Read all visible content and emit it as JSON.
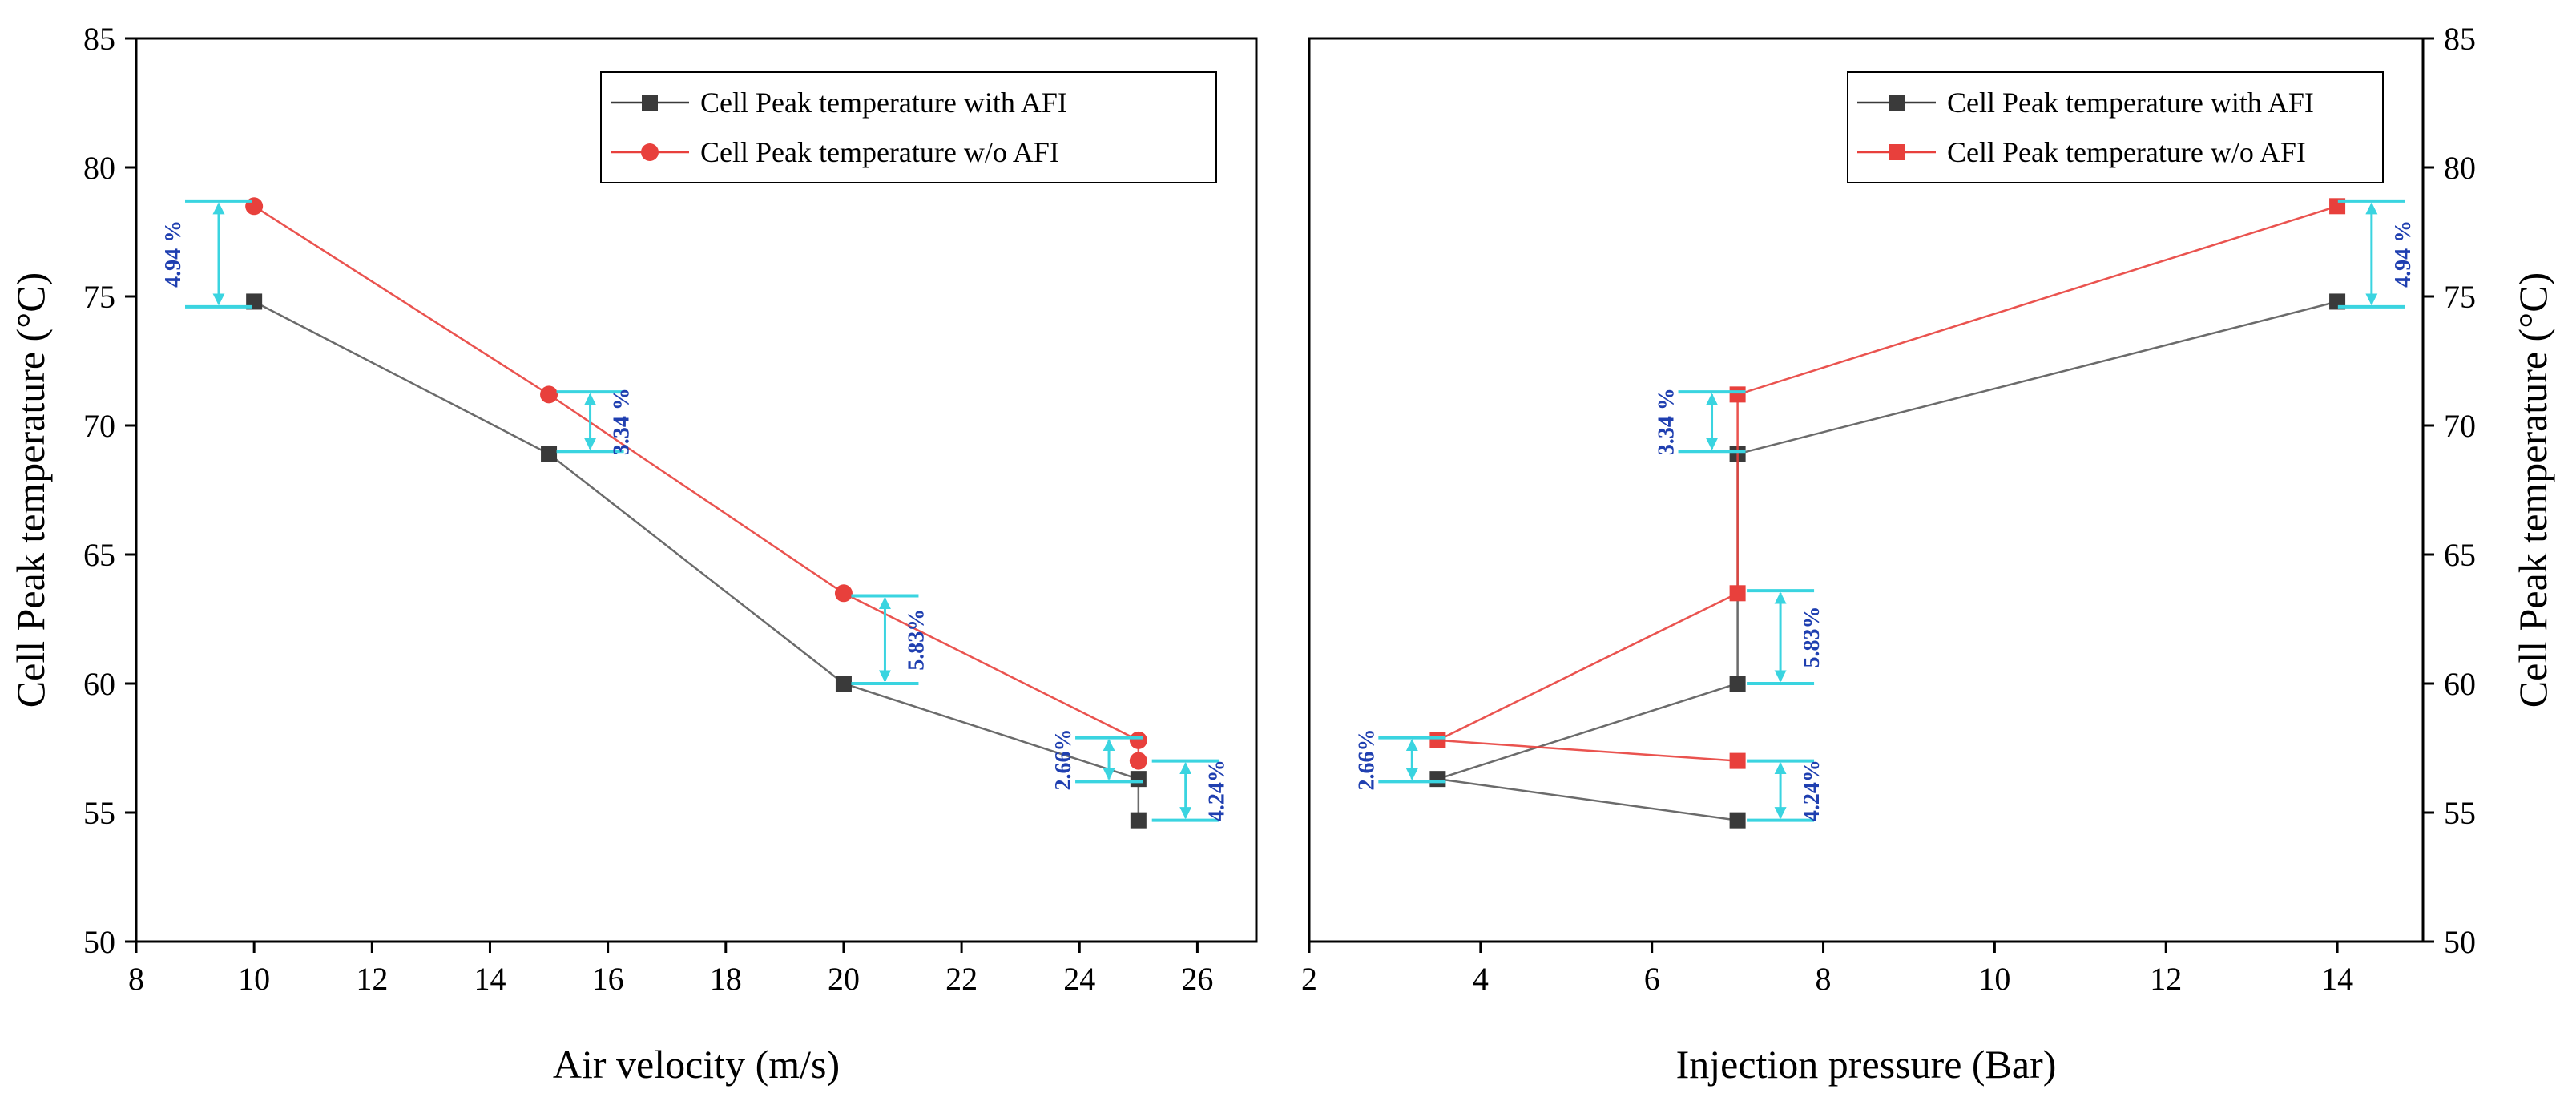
{
  "colors": {
    "with_afi": "#3a3a3a",
    "without_afi": "#e8403c",
    "annotation_line": "#3ad4e0",
    "annotation_text": "#1f3fb0"
  },
  "chart_data": [
    {
      "type": "line",
      "xlabel": "Air velocity (m/s)",
      "ylabel": "Cell Peak temperature (°C)",
      "xlim": [
        8,
        27
      ],
      "ylim": [
        50,
        85
      ],
      "xticks": [
        8,
        10,
        12,
        14,
        16,
        18,
        20,
        22,
        24,
        26
      ],
      "yticks": [
        50,
        55,
        60,
        65,
        70,
        75,
        80,
        85
      ],
      "y_axis_side": "left",
      "legend_position": "top-right",
      "series": [
        {
          "name": "Cell Peak temperature with AFI",
          "marker": "square",
          "color": "#3a3a3a",
          "points": [
            [
              10,
              74.8
            ],
            [
              15,
              68.9
            ],
            [
              20,
              60.0
            ],
            [
              25,
              56.3
            ],
            [
              25,
              54.7
            ]
          ]
        },
        {
          "name": "Cell Peak temperature w/o AFI",
          "marker": "circle",
          "color": "#e8403c",
          "points": [
            [
              10,
              78.5
            ],
            [
              15,
              71.2
            ],
            [
              20,
              63.5
            ],
            [
              25,
              57.8
            ],
            [
              25,
              57.0
            ]
          ]
        }
      ],
      "annotations": [
        {
          "label": "4.94 %",
          "x": 9.4,
          "y_low": 74.6,
          "y_high": 78.7,
          "text_side": "left"
        },
        {
          "label": "3.34 %",
          "x": 15.7,
          "y_low": 69.0,
          "y_high": 71.3,
          "text_side": "right"
        },
        {
          "label": "5.83%",
          "x": 20.7,
          "y_low": 60.0,
          "y_high": 63.4,
          "text_side": "right"
        },
        {
          "label": "2.66%",
          "x": 24.5,
          "y_low": 56.2,
          "y_high": 57.9,
          "text_side": "left"
        },
        {
          "label": "4.24%",
          "x": 25.8,
          "y_low": 54.7,
          "y_high": 57.0,
          "text_side": "right"
        }
      ]
    },
    {
      "type": "line",
      "xlabel": "Injection pressure (Bar)",
      "ylabel": "Cell Peak temperature (°C)",
      "xlim": [
        2,
        15
      ],
      "ylim": [
        50,
        85
      ],
      "xticks": [
        2,
        4,
        6,
        8,
        10,
        12,
        14
      ],
      "yticks": [
        50,
        55,
        60,
        65,
        70,
        75,
        80,
        85
      ],
      "y_axis_side": "right",
      "legend_position": "top-right",
      "series": [
        {
          "name": "Cell Peak temperature with AFI",
          "marker": "square",
          "color": "#3a3a3a",
          "points": [
            [
              14,
              74.8
            ],
            [
              7,
              68.9
            ],
            [
              7,
              60.0
            ],
            [
              3.5,
              56.3
            ],
            [
              7,
              54.7
            ]
          ]
        },
        {
          "name": "Cell Peak temperature w/o AFI",
          "marker": "square",
          "color": "#e8403c",
          "points": [
            [
              14,
              78.5
            ],
            [
              7,
              71.2
            ],
            [
              7,
              63.5
            ],
            [
              3.5,
              57.8
            ],
            [
              7,
              57.0
            ]
          ]
        }
      ],
      "annotations": [
        {
          "label": "4.94 %",
          "x": 14.4,
          "y_low": 74.6,
          "y_high": 78.7,
          "text_side": "right"
        },
        {
          "label": "3.34 %",
          "x": 6.7,
          "y_low": 69.0,
          "y_high": 71.3,
          "text_side": "left"
        },
        {
          "label": "5.83%",
          "x": 7.5,
          "y_low": 60.0,
          "y_high": 63.6,
          "text_side": "right"
        },
        {
          "label": "2.66%",
          "x": 3.2,
          "y_low": 56.2,
          "y_high": 57.9,
          "text_side": "left"
        },
        {
          "label": "4.24%",
          "x": 7.5,
          "y_low": 54.7,
          "y_high": 57.0,
          "text_side": "right"
        }
      ]
    }
  ]
}
